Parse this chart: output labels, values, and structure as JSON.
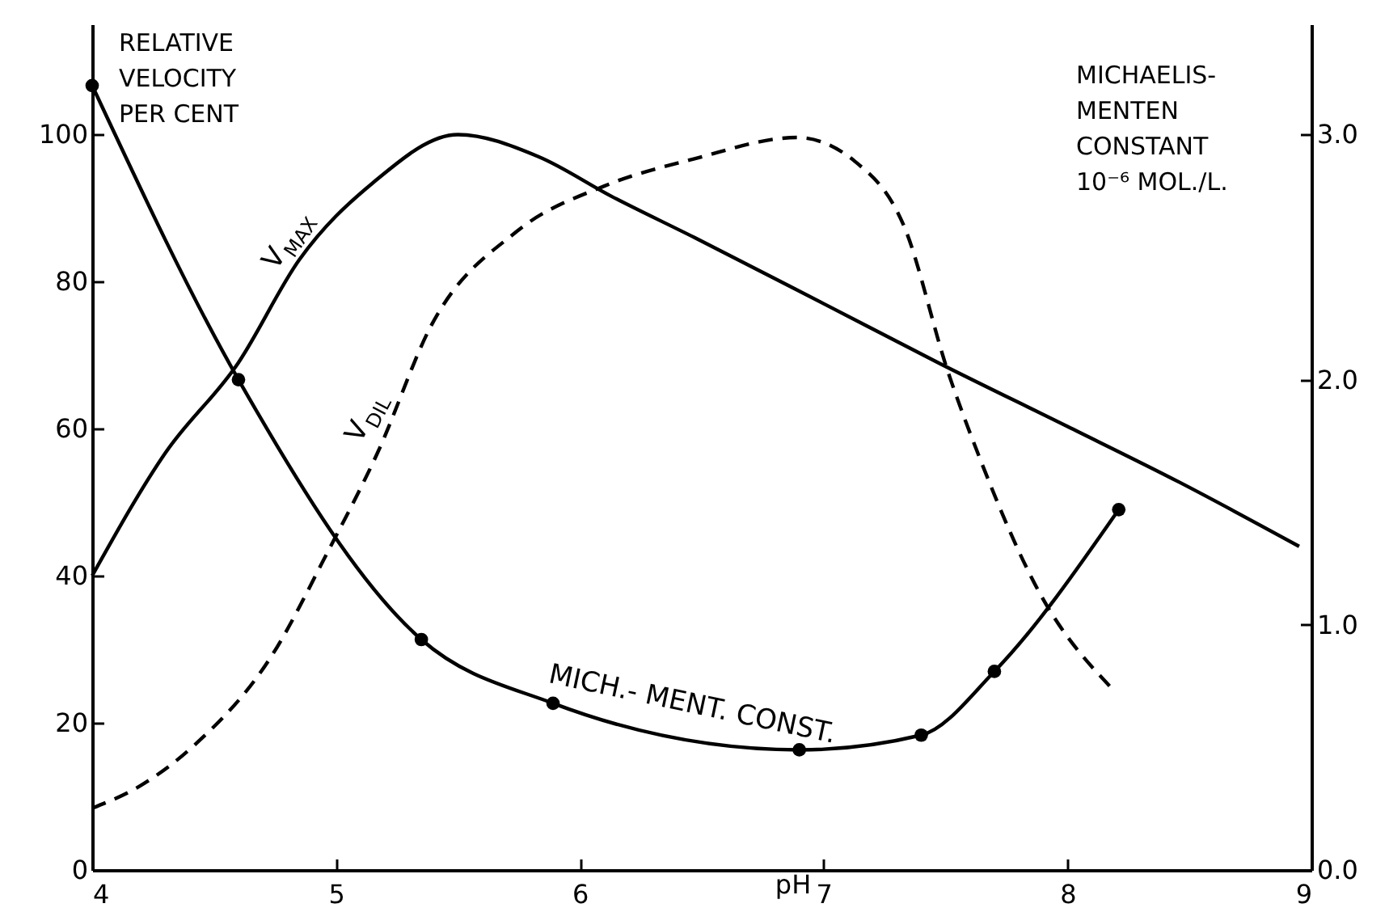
{
  "chart_data": {
    "type": "line",
    "xlabel": "pH",
    "ylabel": "RELATIVE\nVELOCITY\nPER CENT",
    "y2label": "MICHAELIS-\nMENTEN\nCONSTANT\n10⁻⁶ MOL./L.",
    "xlim": [
      4,
      9
    ],
    "xticks": [
      4,
      5,
      6,
      7,
      8,
      9
    ],
    "ylim": [
      0,
      115
    ],
    "yticks": [
      0,
      20,
      40,
      60,
      80,
      100
    ],
    "y2lim": [
      0,
      3.45
    ],
    "y2ticks": [
      {
        "value": 0,
        "label": "0.0"
      },
      {
        "value": 1,
        "label": "1.0"
      },
      {
        "value": 2,
        "label": "2.0"
      },
      {
        "value": 3,
        "label": "3.0"
      }
    ],
    "grid": false,
    "series": [
      {
        "name": "V$_{MAX}$",
        "color": "#000000",
        "line_style": "solid",
        "marker": "none",
        "x": [
          4,
          4.3,
          4.6,
          4.85,
          5.15,
          5.5,
          5.83,
          6.13,
          6.47,
          7.0,
          7.48,
          8.0,
          8.46,
          8.95
        ],
        "values": [
          40,
          56.7,
          69,
          83,
          93.4,
          100,
          97,
          91.6,
          86,
          77,
          68.8,
          60.3,
          52.7,
          44
        ]
      },
      {
        "name": "V$_{DIL}$",
        "color": "#000000",
        "line_style": "dashed",
        "marker": "none",
        "x": [
          4,
          4.2,
          4.42,
          4.73,
          4.97,
          5.17,
          5.39,
          5.74,
          6.1,
          6.47,
          6.89,
          7.13,
          7.33,
          7.51,
          7.64,
          7.88,
          8.19
        ],
        "values": [
          8.4,
          11.5,
          17,
          28.8,
          43.5,
          56.7,
          74,
          86.8,
          93,
          96.7,
          99.6,
          96.3,
          87.5,
          67.7,
          56,
          38,
          24.4
        ]
      },
      {
        "name": "MICH.- MENT. CONST.",
        "color": "#000000",
        "line_style": "solid",
        "marker": "circle",
        "axis": "y2",
        "x": [
          4,
          4.6,
          5.35,
          5.89,
          6.9,
          7.4,
          7.7,
          8.21
        ],
        "values": [
          3.2,
          2.0,
          0.94,
          0.68,
          0.49,
          0.55,
          0.81,
          1.47
        ]
      }
    ]
  }
}
